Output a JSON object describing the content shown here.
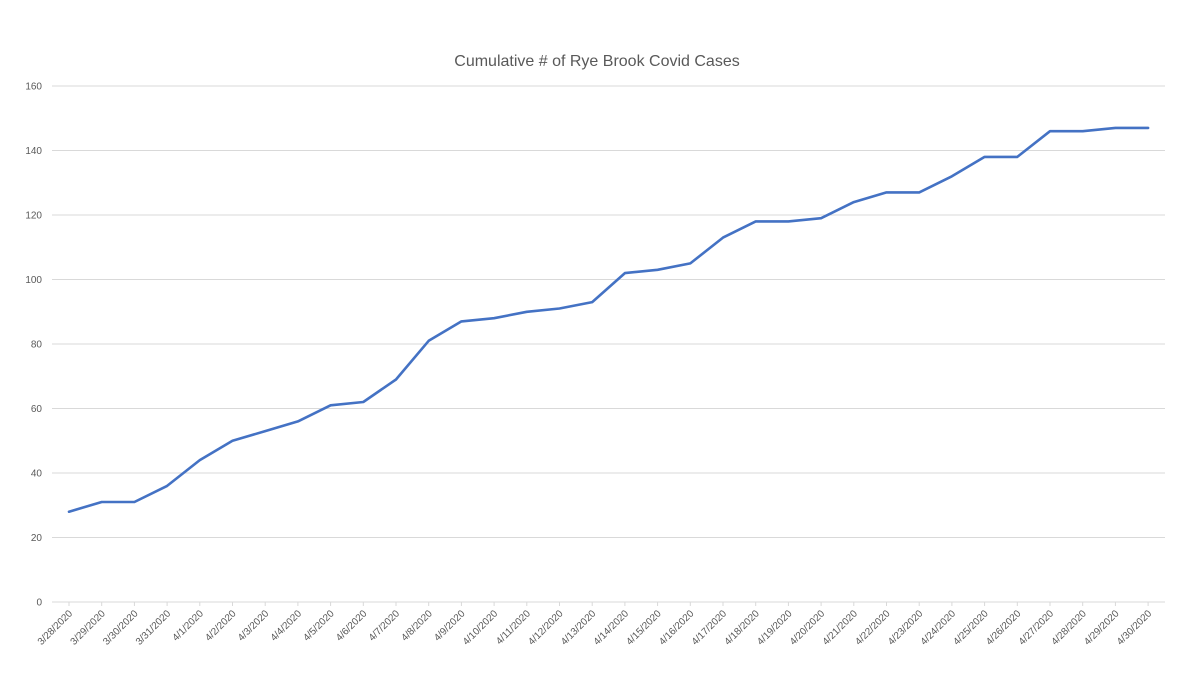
{
  "chart_data": {
    "type": "line",
    "title": "Cumulative # of Rye Brook Covid Cases",
    "xlabel": "",
    "ylabel": "",
    "ylim": [
      0,
      160
    ],
    "yticks": [
      0,
      20,
      40,
      60,
      80,
      100,
      120,
      140,
      160
    ],
    "grid": true,
    "legend": "none",
    "categories": [
      "3/28/2020",
      "3/29/2020",
      "3/30/2020",
      "3/31/2020",
      "4/1/2020",
      "4/2/2020",
      "4/3/2020",
      "4/4/2020",
      "4/5/2020",
      "4/6/2020",
      "4/7/2020",
      "4/8/2020",
      "4/9/2020",
      "4/10/2020",
      "4/11/2020",
      "4/12/2020",
      "4/13/2020",
      "4/14/2020",
      "4/15/2020",
      "4/16/2020",
      "4/17/2020",
      "4/18/2020",
      "4/19/2020",
      "4/20/2020",
      "4/21/2020",
      "4/22/2020",
      "4/23/2020",
      "4/24/2020",
      "4/25/2020",
      "4/26/2020",
      "4/27/2020",
      "4/28/2020",
      "4/29/2020",
      "4/30/2020"
    ],
    "series": [
      {
        "color": "#4472c4",
        "values": [
          28,
          31,
          31,
          36,
          44,
          50,
          53,
          56,
          61,
          62,
          69,
          81,
          87,
          88,
          90,
          91,
          93,
          102,
          103,
          105,
          113,
          118,
          118,
          119,
          124,
          127,
          127,
          132,
          138,
          138,
          146,
          146,
          147,
          147
        ]
      }
    ]
  },
  "colors": {
    "line": "#4472c4",
    "grid": "#d9d9d9",
    "text": "#595959"
  }
}
